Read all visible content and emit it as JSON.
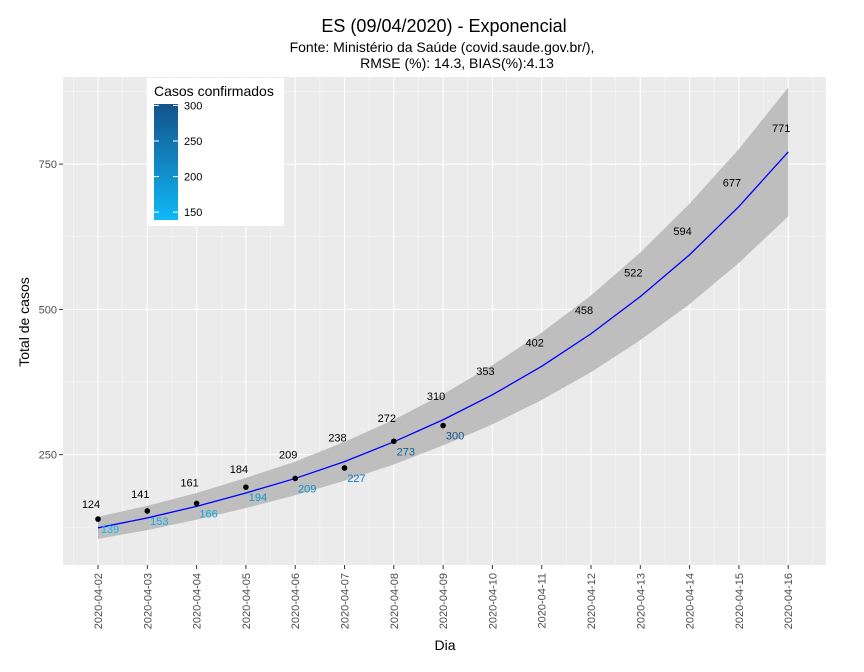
{
  "chart_data": {
    "type": "line",
    "title": "ES (09/04/2020) - Exponencial",
    "subtitle_line1": "Fonte: Ministério da Saúde (covid.saude.gov.br/),",
    "subtitle_line2": "RMSE (%): 14.3, BIAS(%):4.13",
    "xlabel": "Dia",
    "ylabel": "Total de casos",
    "ylim": [
      60,
      900
    ],
    "yticks": [
      250,
      500,
      750
    ],
    "grid": true,
    "x": [
      "2020-04-02",
      "2020-04-03",
      "2020-04-04",
      "2020-04-05",
      "2020-04-06",
      "2020-04-07",
      "2020-04-08",
      "2020-04-09",
      "2020-04-10",
      "2020-04-11",
      "2020-04-12",
      "2020-04-13",
      "2020-04-14",
      "2020-04-15",
      "2020-04-16"
    ],
    "fitted": [
      124,
      141,
      161,
      184,
      209,
      238,
      272,
      310,
      353,
      402,
      458,
      522,
      594,
      677,
      771
    ],
    "band_lower": [
      105,
      120,
      138,
      158,
      180,
      205,
      233,
      266,
      302,
      344,
      392,
      447,
      509,
      580,
      660
    ],
    "band_upper": [
      143,
      162,
      184,
      210,
      238,
      272,
      310,
      354,
      404,
      460,
      524,
      598,
      682,
      776,
      882
    ],
    "confirmed": [
      139,
      153,
      166,
      194,
      209,
      227,
      273,
      300
    ],
    "legend": {
      "title": "Casos confirmados",
      "position": "top-left",
      "ticks": [
        300,
        250,
        200,
        150
      ],
      "range": [
        139,
        300
      ]
    },
    "colors": {
      "fit_line": "#0000ff",
      "band": "#bebebe",
      "point": "#000000",
      "gradient_low": "#0fb9f7",
      "gradient_high": "#13528a",
      "panel": "#ebebeb",
      "grid": "#ffffff"
    }
  }
}
